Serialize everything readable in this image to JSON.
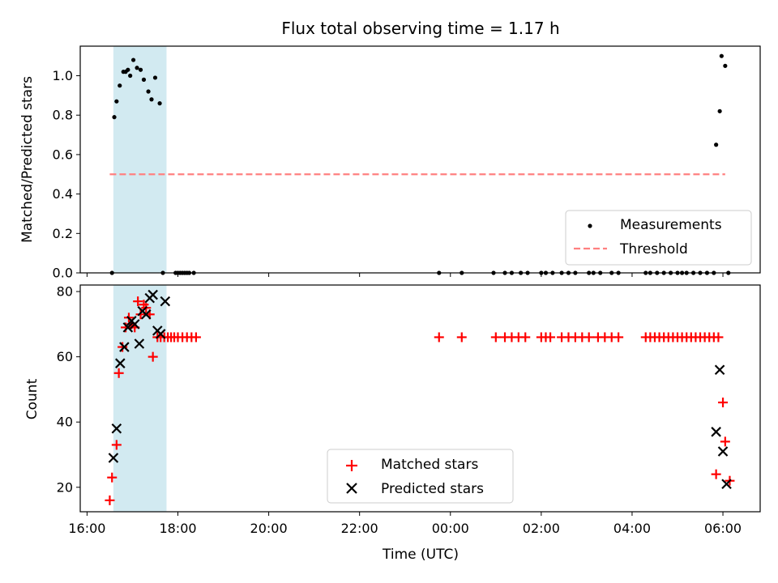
{
  "title": "Flux total observing time = 1.17 h",
  "chart_data": [
    {
      "type": "scatter",
      "panel": "top",
      "ylabel": "Matched/Predicted stars",
      "ylim": [
        0,
        1.15
      ],
      "yticks": [
        "0.0",
        "0.2",
        "0.4",
        "0.6",
        "0.8",
        "1.0"
      ],
      "yticks_values": [
        0,
        0.2,
        0.4,
        0.6,
        0.8,
        1.0
      ],
      "x_unit": "hours since 16:00 UTC",
      "shaded_range": [
        16.58,
        17.75
      ],
      "shade_color": "#add8e6",
      "threshold": 0.5,
      "legend_position": "lower-right",
      "series": [
        {
          "name": "Measurements",
          "marker": "dot",
          "color": "#000000",
          "x": [
            16.55,
            16.6,
            16.65,
            16.72,
            16.8,
            16.85,
            16.9,
            16.95,
            17.02,
            17.1,
            17.18,
            17.25,
            17.35,
            17.42,
            17.5,
            17.6,
            17.67,
            17.95,
            18.0,
            18.05,
            18.1,
            18.15,
            18.2,
            18.25,
            18.35,
            23.75,
            24.25,
            24.95,
            25.2,
            25.35,
            25.55,
            25.7,
            26.0,
            26.1,
            26.25,
            26.45,
            26.6,
            26.75,
            27.05,
            27.15,
            27.3,
            27.55,
            27.7,
            28.3,
            28.4,
            28.55,
            28.7,
            28.85,
            29.0,
            29.1,
            29.2,
            29.35,
            29.5,
            29.65,
            29.8,
            29.85,
            29.93,
            29.97,
            30.05,
            30.12
          ],
          "y": [
            0.0,
            0.79,
            0.87,
            0.95,
            1.02,
            1.02,
            1.03,
            1.0,
            1.08,
            1.04,
            1.03,
            0.98,
            0.92,
            0.88,
            0.99,
            0.86,
            0.0,
            0.0,
            0.0,
            0.0,
            0.0,
            0.0,
            0.0,
            0.0,
            0.0,
            0.0,
            0.0,
            0.0,
            0.0,
            0.0,
            0.0,
            0.0,
            0.0,
            0.0,
            0.0,
            0.0,
            0.0,
            0.0,
            0.0,
            0.0,
            0.0,
            0.0,
            0.0,
            0.0,
            0.0,
            0.0,
            0.0,
            0.0,
            0.0,
            0.0,
            0.0,
            0.0,
            0.0,
            0.0,
            0.0,
            0.65,
            0.82,
            1.1,
            1.05,
            0.0
          ]
        },
        {
          "name": "Threshold",
          "marker": "dashed-line",
          "color": "#ff8080",
          "x": [
            16.5,
            30.05
          ],
          "y": [
            0.5,
            0.5
          ]
        }
      ]
    },
    {
      "type": "scatter",
      "panel": "bottom",
      "xlabel": "Time (UTC)",
      "ylabel": "Count",
      "ylim": [
        12.5,
        82
      ],
      "yticks": [
        "20",
        "40",
        "60",
        "80"
      ],
      "yticks_values": [
        20,
        40,
        60,
        80
      ],
      "xlim": [
        15.85,
        30.82
      ],
      "xticks": [
        "16:00",
        "18:00",
        "20:00",
        "22:00",
        "00:00",
        "02:00",
        "04:00",
        "06:00"
      ],
      "xticks_values": [
        16,
        18,
        20,
        22,
        24,
        26,
        28,
        30
      ],
      "x_unit": "hours since 16:00 UTC",
      "shaded_range": [
        16.58,
        17.75
      ],
      "shade_color": "#add8e6",
      "legend_position": "lower-center",
      "series": [
        {
          "name": "Matched stars",
          "marker": "plus",
          "color": "#ff0000",
          "x": [
            16.5,
            16.55,
            16.65,
            16.7,
            16.78,
            16.85,
            16.92,
            16.98,
            17.05,
            17.12,
            17.18,
            17.25,
            17.3,
            17.38,
            17.45,
            17.55,
            17.62,
            17.7,
            17.78,
            17.85,
            17.92,
            18.0,
            18.1,
            18.2,
            18.3,
            18.4,
            23.75,
            24.25,
            25.0,
            25.2,
            25.35,
            25.5,
            25.65,
            26.0,
            26.1,
            26.2,
            26.45,
            26.6,
            26.75,
            26.9,
            27.05,
            27.25,
            27.4,
            27.55,
            27.7,
            28.3,
            28.4,
            28.5,
            28.6,
            28.7,
            28.8,
            28.9,
            29.0,
            29.1,
            29.2,
            29.3,
            29.4,
            29.5,
            29.6,
            29.7,
            29.8,
            29.9,
            29.85,
            30.0,
            30.05,
            30.15
          ],
          "y": [
            16,
            23,
            33,
            55,
            63,
            69,
            72,
            70,
            69,
            77,
            73,
            76,
            75,
            73,
            60,
            66,
            66,
            66,
            66,
            66,
            66,
            66,
            66,
            66,
            66,
            66,
            66,
            66,
            66,
            66,
            66,
            66,
            66,
            66,
            66,
            66,
            66,
            66,
            66,
            66,
            66,
            66,
            66,
            66,
            66,
            66,
            66,
            66,
            66,
            66,
            66,
            66,
            66,
            66,
            66,
            66,
            66,
            66,
            66,
            66,
            66,
            66,
            24,
            46,
            34,
            22
          ]
        },
        {
          "name": "Predicted stars",
          "marker": "cross",
          "color": "#000000",
          "x": [
            16.58,
            16.65,
            16.73,
            16.82,
            16.9,
            16.98,
            17.05,
            17.15,
            17.22,
            17.3,
            17.38,
            17.45,
            17.55,
            17.62,
            17.72,
            29.85,
            29.93,
            30.0,
            30.08
          ],
          "y": [
            29,
            38,
            58,
            63,
            69,
            71,
            70,
            64,
            74,
            73,
            78,
            79,
            68,
            67,
            77,
            37,
            56,
            31,
            21
          ]
        }
      ]
    }
  ]
}
